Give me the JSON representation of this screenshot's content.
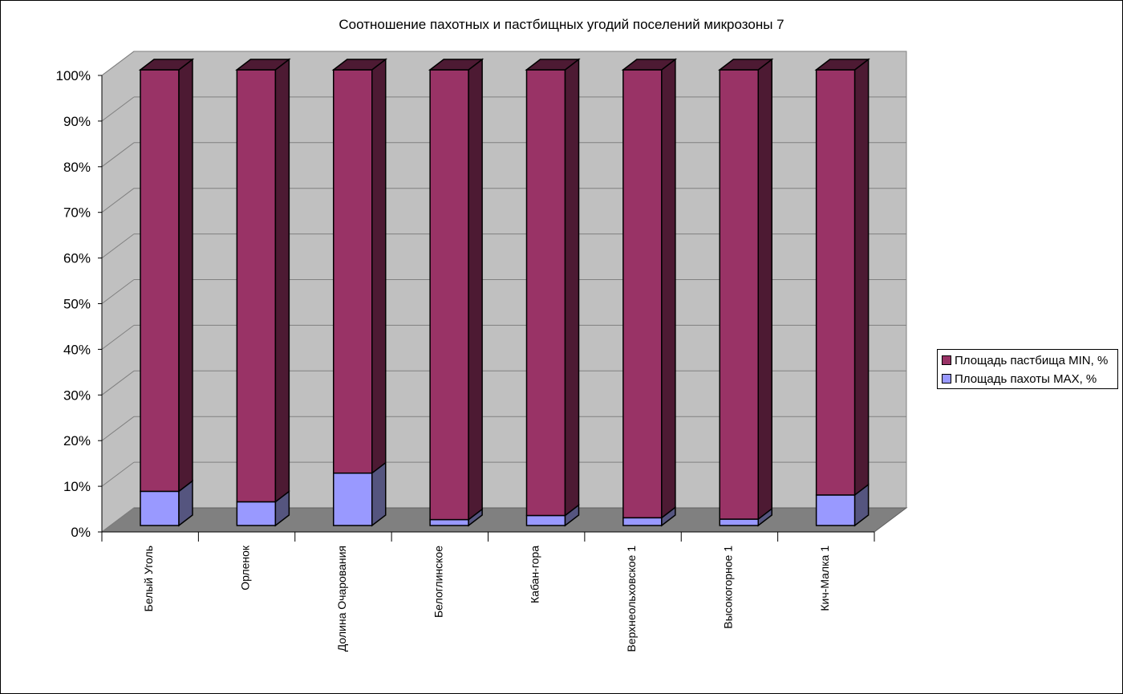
{
  "chart_data": {
    "type": "bar",
    "stacked": "percent",
    "view": "3d",
    "title": "Соотношение пахотных и пастбищных угодий поселений микрозоны 7",
    "categories": [
      "Белый Уголь",
      "Орленок",
      "Долина Очарования",
      "Белоглинское",
      "Кабан-гора",
      "Верхнеольховское 1",
      "Высокогорное 1",
      "Кич-Малка 1"
    ],
    "series": [
      {
        "name": "Площадь пахоты MAX, %",
        "values": [
          7.5,
          5.2,
          11.5,
          1.3,
          2.2,
          1.7,
          1.4,
          6.7
        ],
        "color": "#9999ff",
        "side_color": "#55557f"
      },
      {
        "name": "Площадь пастбища MIN, %",
        "values": [
          92.5,
          94.8,
          88.5,
          98.7,
          97.8,
          98.3,
          98.6,
          93.3
        ],
        "color": "#993366",
        "side_color": "#4d1a33"
      }
    ],
    "legend_order": [
      "Площадь пастбища MIN, %",
      "Площадь пахоты MAX, %"
    ],
    "y_ticks": [
      "0%",
      "10%",
      "20%",
      "30%",
      "40%",
      "50%",
      "60%",
      "70%",
      "80%",
      "90%",
      "100%"
    ],
    "ylim": [
      0,
      100
    ],
    "grid": true,
    "legend_position": "right",
    "wall_color": "#c0c0c0",
    "floor_color": "#808080"
  }
}
